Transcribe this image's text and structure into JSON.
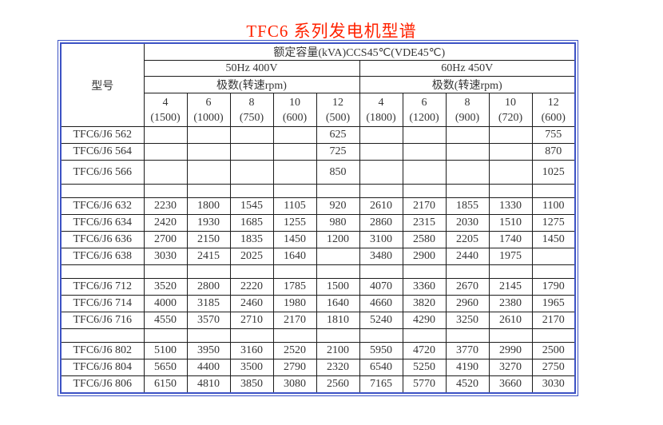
{
  "title": "TFC6 系列发电机型谱",
  "colors": {
    "title": "#ff2200",
    "outer_border": "#3c52c4",
    "section_divider": "#3c52c4",
    "model_divider": "#58c8f2",
    "grid": "#1c1c1c",
    "text": "#363636"
  },
  "table": {
    "model_header": "型号",
    "capacity_header": "额定容量(kVA)CCS45℃(VDE45℃)",
    "sections": [
      {
        "label": "50Hz 400V",
        "poles_label": "极数(转速rpm)",
        "columns": [
          {
            "poles": "4",
            "rpm": "(1500)"
          },
          {
            "poles": "6",
            "rpm": "(1000)"
          },
          {
            "poles": "8",
            "rpm": "(750)"
          },
          {
            "poles": "10",
            "rpm": "(600)"
          },
          {
            "poles": "12",
            "rpm": "(500)"
          }
        ]
      },
      {
        "label": "60Hz 450V",
        "poles_label": "极数(转速rpm)",
        "columns": [
          {
            "poles": "4",
            "rpm": "(1800)"
          },
          {
            "poles": "6",
            "rpm": "(1200)"
          },
          {
            "poles": "8",
            "rpm": "(900)"
          },
          {
            "poles": "10",
            "rpm": "(720)"
          },
          {
            "poles": "12",
            "rpm": "(600)"
          }
        ]
      }
    ],
    "rows": [
      {
        "model": "TFC6/J6 562",
        "values": [
          "",
          "",
          "",
          "",
          "625",
          "",
          "",
          "",
          "",
          "755"
        ]
      },
      {
        "model": "TFC6/J6 564",
        "values": [
          "",
          "",
          "",
          "",
          "725",
          "",
          "",
          "",
          "",
          "870"
        ]
      },
      {
        "model": "TFC6/J6 566",
        "values": [
          "",
          "",
          "",
          "",
          "850",
          "",
          "",
          "",
          "",
          "1025"
        ],
        "tall": true
      },
      {
        "spacer": true
      },
      {
        "model": "TFC6/J6 632",
        "values": [
          "2230",
          "1800",
          "1545",
          "1105",
          "920",
          "2610",
          "2170",
          "1855",
          "1330",
          "1100"
        ]
      },
      {
        "model": "TFC6/J6 634",
        "values": [
          "2420",
          "1930",
          "1685",
          "1255",
          "980",
          "2860",
          "2315",
          "2030",
          "1510",
          "1275"
        ]
      },
      {
        "model": "TFC6/J6 636",
        "values": [
          "2700",
          "2150",
          "1835",
          "1450",
          "1200",
          "3100",
          "2580",
          "2205",
          "1740",
          "1450"
        ]
      },
      {
        "model": "TFC6/J6 638",
        "values": [
          "3030",
          "2415",
          "2025",
          "1640",
          "",
          "3480",
          "2900",
          "2440",
          "1975",
          ""
        ]
      },
      {
        "spacer": true
      },
      {
        "model": "TFC6/J6 712",
        "values": [
          "3520",
          "2800",
          "2220",
          "1785",
          "1500",
          "4070",
          "3360",
          "2670",
          "2145",
          "1790"
        ]
      },
      {
        "model": "TFC6/J6 714",
        "values": [
          "4000",
          "3185",
          "2460",
          "1980",
          "1640",
          "4660",
          "3820",
          "2960",
          "2380",
          "1965"
        ]
      },
      {
        "model": "TFC6/J6 716",
        "values": [
          "4550",
          "3570",
          "2710",
          "2170",
          "1810",
          "5240",
          "4290",
          "3250",
          "2610",
          "2170"
        ]
      },
      {
        "spacer": true
      },
      {
        "model": "TFC6/J6 802",
        "values": [
          "5100",
          "3950",
          "3160",
          "2520",
          "2100",
          "5950",
          "4720",
          "3770",
          "2990",
          "2500"
        ]
      },
      {
        "model": "TFC6/J6 804",
        "values": [
          "5650",
          "4400",
          "3500",
          "2790",
          "2320",
          "6540",
          "5250",
          "4190",
          "3270",
          "2750"
        ]
      },
      {
        "model": "TFC6/J6 806",
        "values": [
          "6150",
          "4810",
          "3850",
          "3080",
          "2560",
          "7165",
          "5770",
          "4520",
          "3660",
          "3030"
        ]
      }
    ]
  }
}
